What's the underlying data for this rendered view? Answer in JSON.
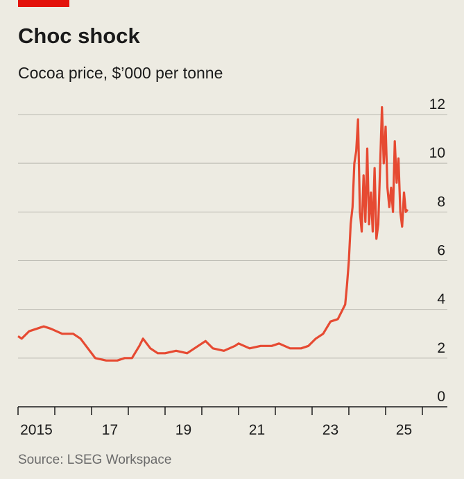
{
  "chart_data": {
    "type": "line",
    "title": "Choc shock",
    "subtitle": "Cocoa price, $’000 per tonne",
    "source": "Source: LSEG Workspace",
    "color": "#e64a32",
    "x": [
      2015.0,
      2015.1,
      2015.3,
      2015.5,
      2015.7,
      2015.9,
      2016.2,
      2016.5,
      2016.7,
      2016.9,
      2017.1,
      2017.4,
      2017.7,
      2017.9,
      2018.1,
      2018.3,
      2018.4,
      2018.6,
      2018.8,
      2019.0,
      2019.3,
      2019.6,
      2019.9,
      2020.1,
      2020.3,
      2020.6,
      2020.9,
      2021.0,
      2021.3,
      2021.6,
      2021.9,
      2022.1,
      2022.4,
      2022.7,
      2022.9,
      2023.1,
      2023.3,
      2023.5,
      2023.7,
      2023.9,
      2023.95,
      2024.0,
      2024.05,
      2024.1,
      2024.15,
      2024.2,
      2024.25,
      2024.3,
      2024.35,
      2024.4,
      2024.45,
      2024.5,
      2024.55,
      2024.6,
      2024.65,
      2024.7,
      2024.75,
      2024.8,
      2024.85,
      2024.9,
      2024.95,
      2025.0,
      2025.05,
      2025.1,
      2025.15,
      2025.2,
      2025.25,
      2025.3,
      2025.35,
      2025.4,
      2025.45,
      2025.5,
      2025.55,
      2025.6
    ],
    "values": [
      2.9,
      2.8,
      3.1,
      3.2,
      3.3,
      3.2,
      3.0,
      3.0,
      2.8,
      2.4,
      2.0,
      1.9,
      1.9,
      2.0,
      2.0,
      2.5,
      2.8,
      2.4,
      2.2,
      2.2,
      2.3,
      2.2,
      2.5,
      2.7,
      2.4,
      2.3,
      2.5,
      2.6,
      2.4,
      2.5,
      2.5,
      2.6,
      2.4,
      2.4,
      2.5,
      2.8,
      3.0,
      3.5,
      3.6,
      4.2,
      5.0,
      6.0,
      7.5,
      8.2,
      10.0,
      10.5,
      11.8,
      8.0,
      7.2,
      9.5,
      7.6,
      10.6,
      7.5,
      8.8,
      7.2,
      9.8,
      6.9,
      7.5,
      9.8,
      12.3,
      10.0,
      11.5,
      9.0,
      8.2,
      9.0,
      8.0,
      10.9,
      9.2,
      10.2,
      8.0,
      7.4,
      8.8,
      8.0,
      8.1
    ],
    "xlim": [
      2015,
      2026.68
    ],
    "xticks": [
      2015,
      2016,
      2017,
      2018,
      2019,
      2020,
      2021,
      2022,
      2023,
      2024,
      2025,
      2026
    ],
    "xtick_labels": [
      {
        "value": 2015.5,
        "label": "2015"
      },
      {
        "value": 2017.5,
        "label": "17"
      },
      {
        "value": 2019.5,
        "label": "19"
      },
      {
        "value": 2021.5,
        "label": "21"
      },
      {
        "value": 2023.5,
        "label": "23"
      },
      {
        "value": 2025.5,
        "label": "25"
      }
    ],
    "ylim": [
      0,
      12
    ],
    "yticks": [
      0,
      2,
      4,
      6,
      8,
      10,
      12
    ],
    "grid": true
  }
}
